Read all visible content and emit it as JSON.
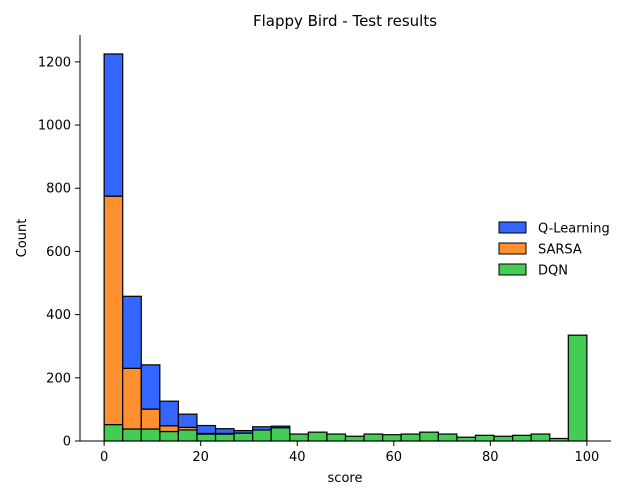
{
  "chart_data": {
    "type": "bar",
    "stacked": true,
    "title": "Flappy Bird - Test results",
    "xlabel": "score",
    "ylabel": "Count",
    "xlim": [
      -5.0,
      105.0
    ],
    "ylim": [
      0,
      1285
    ],
    "xticks": [
      0,
      20,
      40,
      60,
      80,
      100
    ],
    "yticks": [
      0,
      200,
      400,
      600,
      800,
      1000,
      1200
    ],
    "bin_edges": [
      0,
      3.846,
      7.692,
      11.538,
      15.385,
      19.231,
      23.077,
      26.923,
      30.769,
      34.615,
      38.462,
      42.308,
      46.154,
      50.0,
      53.846,
      57.692,
      61.538,
      65.385,
      69.231,
      73.077,
      76.923,
      80.769,
      84.615,
      88.462,
      92.308,
      96.154,
      100.0
    ],
    "legend_position": "center-right",
    "spines": "left-bottom",
    "series": [
      {
        "name": "Q-Learning",
        "color": "#3366ff",
        "values": [
          450,
          228,
          140,
          78,
          42,
          25,
          15,
          8,
          10,
          5,
          0,
          0,
          0,
          0,
          0,
          0,
          0,
          0,
          0,
          0,
          0,
          0,
          0,
          0,
          0,
          0
        ]
      },
      {
        "name": "SARSA",
        "color": "#ff9030",
        "values": [
          723,
          192,
          63,
          18,
          8,
          2,
          2,
          0,
          0,
          0,
          0,
          0,
          0,
          0,
          0,
          0,
          0,
          0,
          0,
          0,
          0,
          0,
          0,
          0,
          0,
          0
        ]
      },
      {
        "name": "DQN",
        "color": "#44cc55",
        "values": [
          52,
          38,
          38,
          30,
          35,
          22,
          22,
          25,
          35,
          42,
          22,
          28,
          22,
          15,
          22,
          20,
          22,
          28,
          22,
          12,
          18,
          15,
          18,
          22,
          8,
          335
        ]
      }
    ]
  }
}
